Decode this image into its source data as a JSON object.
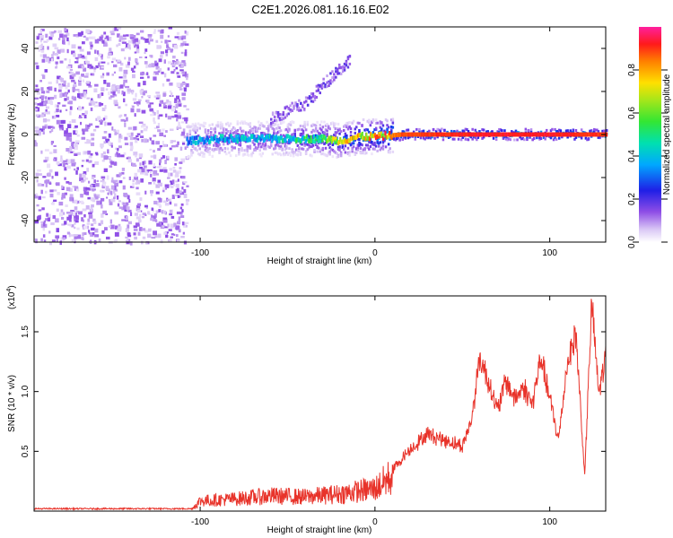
{
  "title": "C2E1.2026.081.16.16.E02",
  "colors": {
    "snr_line": "#e8332a",
    "frame": "#000000",
    "background": "#ffffff"
  },
  "chart_data": [
    {
      "type": "heatmap",
      "name": "spectrogram",
      "xlabel": "Height of straight line (km)",
      "ylabel": "Frequency (Hz)",
      "xlim": [
        -195,
        132
      ],
      "ylim": [
        -50,
        50
      ],
      "xticks": [
        -100,
        0,
        100
      ],
      "xtick_labels": [
        "-100",
        "0",
        "100"
      ],
      "yticks": [
        -40,
        -20,
        0,
        20,
        40
      ],
      "ytick_labels": [
        "-40",
        "-20",
        "0",
        "20",
        "40"
      ],
      "noise_region_x": [
        -195,
        -108
      ],
      "signal_track": [
        {
          "x": -108,
          "freq": -3,
          "amp": 0.35
        },
        {
          "x": -90,
          "freq": -2,
          "amp": 0.4
        },
        {
          "x": -70,
          "freq": -2,
          "amp": 0.4
        },
        {
          "x": -50,
          "freq": -2,
          "amp": 0.45
        },
        {
          "x": -30,
          "freq": -2,
          "amp": 0.55
        },
        {
          "x": -20,
          "freq": -3,
          "amp": 0.7
        },
        {
          "x": -10,
          "freq": -1,
          "amp": 0.75
        },
        {
          "x": 0,
          "freq": -1,
          "amp": 0.8
        },
        {
          "x": 15,
          "freq": 0,
          "amp": 0.9
        },
        {
          "x": 60,
          "freq": 0,
          "amp": 0.95
        },
        {
          "x": 100,
          "freq": 0,
          "amp": 0.95
        },
        {
          "x": 132,
          "freq": 0,
          "amp": 0.92
        }
      ],
      "side_branch": [
        {
          "x": -60,
          "freq": 8
        },
        {
          "x": -40,
          "freq": 15
        },
        {
          "x": -25,
          "freq": 28
        },
        {
          "x": -15,
          "freq": 35
        }
      ],
      "colorbar": {
        "label": "Normalized spectral amplitude",
        "range": [
          0,
          1
        ],
        "ticks": [
          0.0,
          0.2,
          0.4,
          0.6,
          0.8
        ],
        "tick_labels": [
          "0.0",
          "0.2",
          "0.4",
          "0.6",
          "0.8"
        ]
      }
    },
    {
      "type": "line",
      "name": "snr",
      "xlabel": "Height of straight line (km)",
      "ylabel": "SNR (10 * v/v)",
      "multiplier_label": "(x10",
      "multiplier_exp": "4",
      "multiplier_close": ")",
      "xlim": [
        -195,
        132
      ],
      "ylim": [
        0,
        1.8
      ],
      "xticks": [
        -100,
        0,
        100
      ],
      "xtick_labels": [
        "-100",
        "0",
        "100"
      ],
      "yticks": [
        0.5,
        1.0,
        1.5
      ],
      "ytick_labels": [
        "0.5",
        "1.0",
        "1.5"
      ],
      "envelope": [
        {
          "x": -195,
          "y": 0.02
        },
        {
          "x": -105,
          "y": 0.02
        },
        {
          "x": -100,
          "y": 0.1
        },
        {
          "x": -80,
          "y": 0.12
        },
        {
          "x": -60,
          "y": 0.15
        },
        {
          "x": -40,
          "y": 0.14
        },
        {
          "x": -20,
          "y": 0.17
        },
        {
          "x": 0,
          "y": 0.22
        },
        {
          "x": 10,
          "y": 0.35
        },
        {
          "x": 20,
          "y": 0.52
        },
        {
          "x": 30,
          "y": 0.65
        },
        {
          "x": 40,
          "y": 0.6
        },
        {
          "x": 50,
          "y": 0.55
        },
        {
          "x": 55,
          "y": 0.75
        },
        {
          "x": 60,
          "y": 1.3
        },
        {
          "x": 65,
          "y": 1.1
        },
        {
          "x": 70,
          "y": 0.85
        },
        {
          "x": 75,
          "y": 1.1
        },
        {
          "x": 80,
          "y": 0.95
        },
        {
          "x": 85,
          "y": 1.05
        },
        {
          "x": 90,
          "y": 0.9
        },
        {
          "x": 95,
          "y": 1.3
        },
        {
          "x": 100,
          "y": 0.95
        },
        {
          "x": 105,
          "y": 0.6
        },
        {
          "x": 110,
          "y": 1.25
        },
        {
          "x": 115,
          "y": 1.5
        },
        {
          "x": 120,
          "y": 0.3
        },
        {
          "x": 124,
          "y": 1.75
        },
        {
          "x": 128,
          "y": 1.0
        },
        {
          "x": 132,
          "y": 1.3
        }
      ]
    }
  ]
}
